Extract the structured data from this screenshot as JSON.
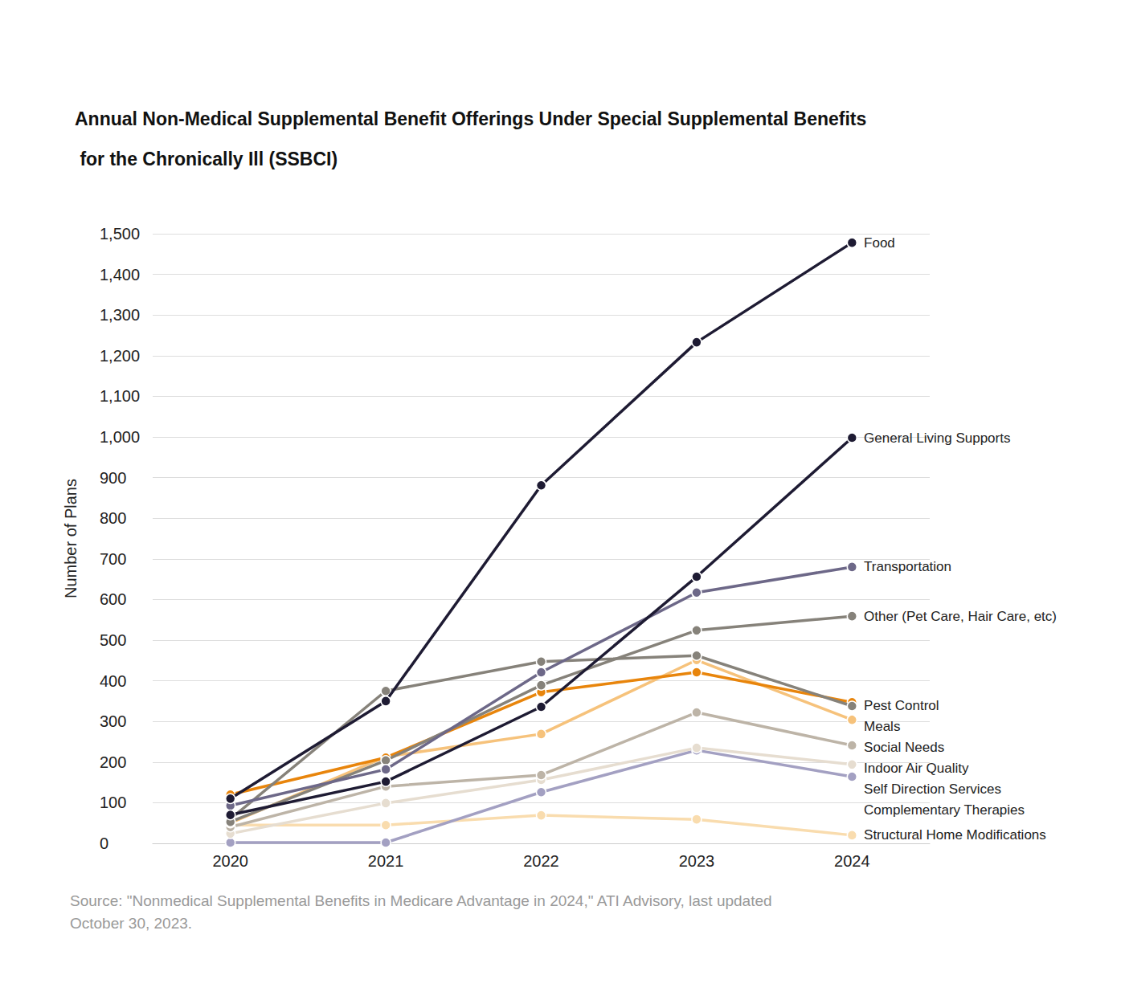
{
  "chart_data": {
    "type": "line",
    "title": "Annual Non-Medical Supplemental Benefit Offerings Under Special Supplemental Benefits for the Chronically Ill (SSBCI)",
    "y_label": "Number of Plans",
    "source": "Source: \"Nonmedical Supplemental Benefits in Medicare Advantage in 2024,\" ATI Advisory, last updated October 30, 2023.",
    "categories": [
      "2020",
      "2021",
      "2022",
      "2023",
      "2024"
    ],
    "ylim": [
      0,
      1500
    ],
    "yticks": [
      0,
      100,
      200,
      300,
      400,
      500,
      600,
      700,
      800,
      900,
      {
        "value": 1000,
        "label": "1,000"
      },
      {
        "value": 1100,
        "label": "1,100"
      },
      {
        "value": 1200,
        "label": "1,200"
      },
      {
        "value": 1300,
        "label": "1,300"
      },
      {
        "value": 1400,
        "label": "1,400"
      },
      {
        "value": 1500,
        "label": "1,500"
      }
    ],
    "grid": true,
    "marker": "circle",
    "line_style": "solid",
    "series": [
      {
        "name": "Food",
        "color": "#1e1b33",
        "values": [
          110,
          350,
          881,
          1233,
          1478
        ]
      },
      {
        "name": "General Living Supports",
        "color": "#1e1b33",
        "values": [
          70,
          152,
          336,
          656,
          998
        ]
      },
      {
        "name": "Transportation",
        "color": "#6d6888",
        "values": [
          93,
          182,
          421,
          617,
          680
        ]
      },
      {
        "name": "Other (Pet Care, Hair Care, etc)",
        "color": "#86827a",
        "values": [
          53,
          204,
          389,
          524,
          559
        ]
      },
      {
        "name": "Pest Control",
        "color": "#86827a",
        "values": [
          60,
          375,
          447,
          462,
          338
        ]
      },
      {
        "name": "Meals",
        "color": "#e8850c",
        "values": [
          120,
          211,
          372,
          421,
          347
        ]
      },
      {
        "name": "Social Needs",
        "color": "#f6c27b",
        "values": [
          50,
          213,
          269,
          451,
          304
        ]
      },
      {
        "name": "Indoor Air Quality",
        "color": "#bdb4a7",
        "values": [
          40,
          140,
          168,
          322,
          241
        ]
      },
      {
        "name": "Self Direction Services",
        "color": "#e6ddd0",
        "values": [
          24,
          99,
          156,
          235,
          194
        ]
      },
      {
        "name": "Complementary Therapies",
        "color": "#a3a0c2",
        "values": [
          2,
          2,
          126,
          229,
          164
        ]
      },
      {
        "name": "Structural Home Modifications",
        "color": "#f9dcae",
        "values": [
          45,
          45,
          69,
          59,
          20
        ]
      }
    ]
  }
}
